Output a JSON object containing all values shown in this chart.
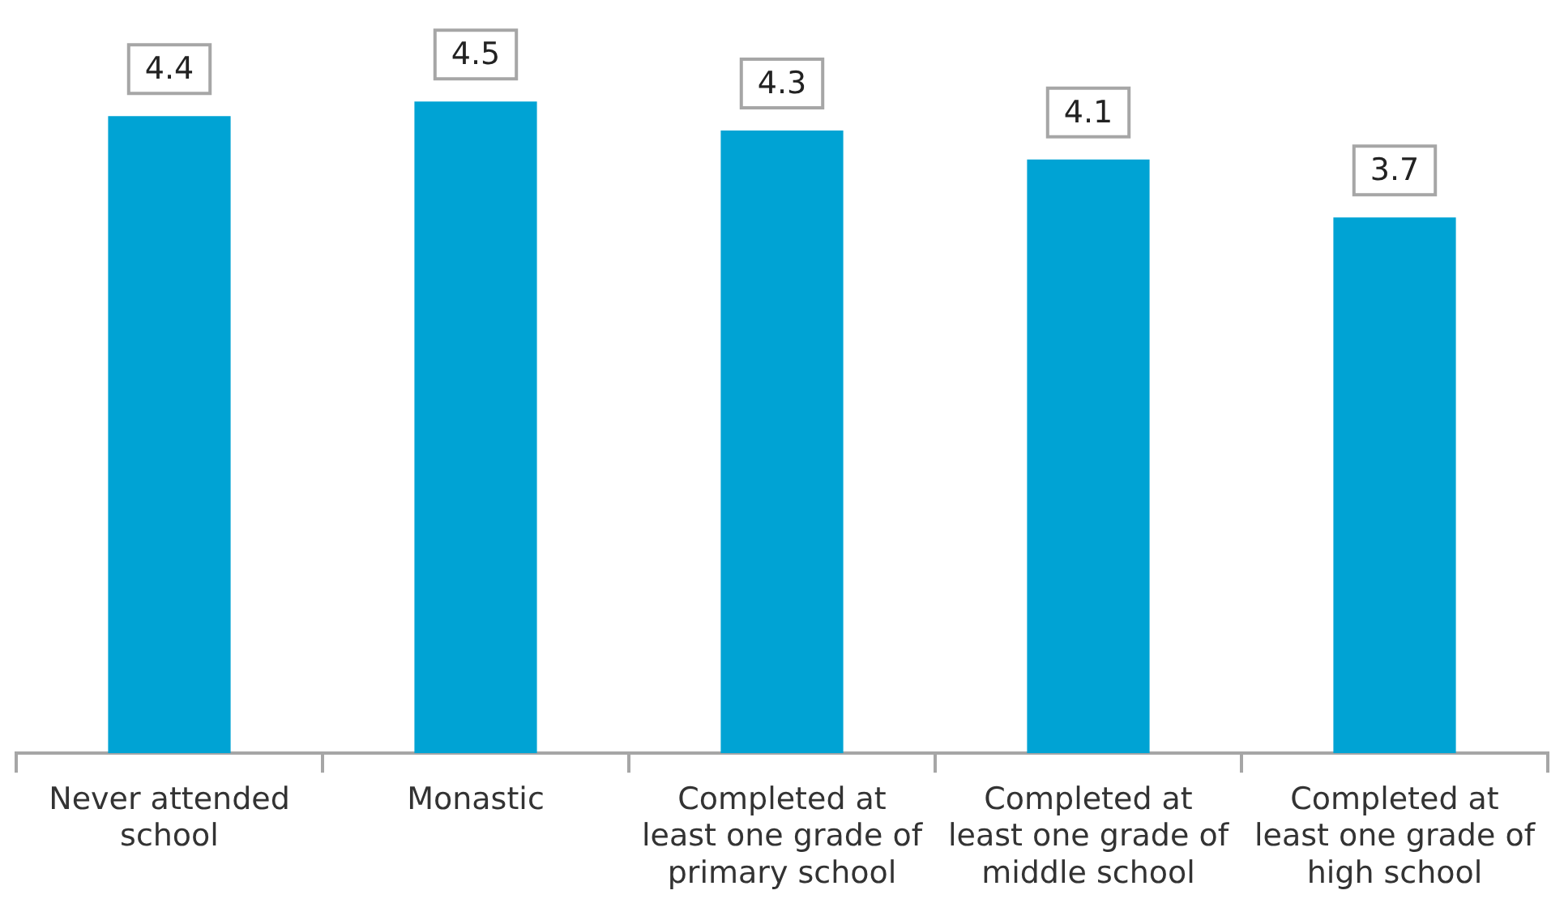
{
  "chart_data": {
    "type": "bar",
    "categories": [
      "Never attended school",
      "Monastic",
      "Completed at least one grade of primary school",
      "Completed at least one grade of middle school",
      "Completed at least one grade of high school"
    ],
    "values": [
      4.4,
      4.5,
      4.3,
      4.1,
      3.7
    ],
    "color": "#00a3d4",
    "data_labels": true,
    "grid": false,
    "legend": false
  }
}
